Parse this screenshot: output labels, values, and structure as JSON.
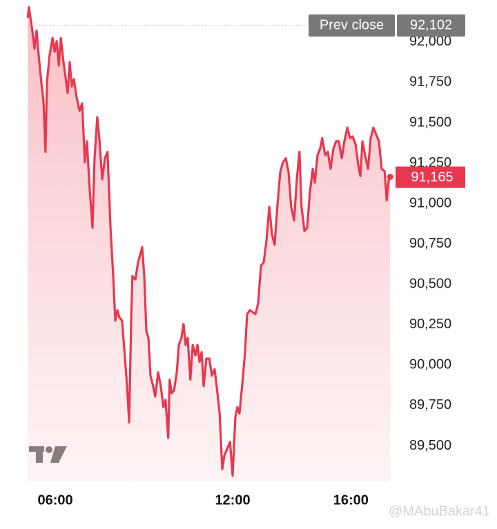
{
  "chart_data": {
    "type": "line",
    "color": "#e8384f",
    "x": [
      5.07,
      5.11,
      5.21,
      5.3,
      5.37,
      5.44,
      5.53,
      5.6,
      5.67,
      5.72,
      5.81,
      5.91,
      5.98,
      6.05,
      6.12,
      6.19,
      6.28,
      6.42,
      6.49,
      6.56,
      6.63,
      6.72,
      6.82,
      6.91,
      7.0,
      7.07,
      7.16,
      7.26,
      7.33,
      7.42,
      7.49,
      7.59,
      7.68,
      7.77,
      7.87,
      7.96,
      8.03,
      8.1,
      8.17,
      8.26,
      8.36,
      8.43,
      8.5,
      8.57,
      8.61,
      8.71,
      8.8,
      8.94,
      9.01,
      9.08,
      9.15,
      9.22,
      9.31,
      9.38,
      9.48,
      9.57,
      9.66,
      9.73,
      9.82,
      9.87,
      9.94,
      10.02,
      10.11,
      10.18,
      10.27,
      10.34,
      10.41,
      10.48,
      10.57,
      10.65,
      10.74,
      10.81,
      10.88,
      10.95,
      11.02,
      11.11,
      11.21,
      11.3,
      11.39,
      11.46,
      11.56,
      11.65,
      11.72,
      11.91,
      12.0,
      12.09,
      12.16,
      12.23,
      12.33,
      12.42,
      12.49,
      12.58,
      12.77,
      12.86,
      12.96,
      13.05,
      13.14,
      13.24,
      13.33,
      13.42,
      13.52,
      13.61,
      13.7,
      13.8,
      13.89,
      13.98,
      14.08,
      14.17,
      14.26,
      14.33,
      14.43,
      14.52,
      14.61,
      14.71,
      14.78,
      14.87,
      14.96,
      15.03,
      15.13,
      15.22,
      15.31,
      15.41,
      15.5,
      15.59,
      15.69,
      15.78,
      15.88,
      15.97,
      16.06,
      16.16,
      16.25,
      16.32,
      16.39,
      16.48,
      16.58,
      16.67,
      16.76,
      16.86,
      16.95,
      17.04,
      17.14,
      17.21,
      17.28,
      17.33
    ],
    "values": [
      92150,
      92215,
      92090,
      91960,
      92070,
      91920,
      91750,
      91640,
      91320,
      91750,
      91920,
      92025,
      91940,
      92005,
      91855,
      92025,
      91875,
      91685,
      91875,
      91725,
      91770,
      91660,
      91575,
      91620,
      91255,
      91385,
      91105,
      90850,
      91280,
      91535,
      91405,
      91150,
      91280,
      91320,
      90850,
      90550,
      90275,
      90340,
      90295,
      90275,
      90040,
      89870,
      89645,
      90295,
      90550,
      90530,
      90635,
      90730,
      90550,
      90210,
      90170,
      89935,
      89870,
      89805,
      89955,
      89870,
      89740,
      89785,
      89550,
      89910,
      89825,
      89845,
      89955,
      90125,
      90170,
      90255,
      90125,
      90170,
      89910,
      90125,
      90060,
      90125,
      90020,
      90080,
      89870,
      90040,
      90040,
      89935,
      89975,
      89870,
      89700,
      89355,
      89440,
      89525,
      89315,
      89675,
      89740,
      89700,
      89890,
      90080,
      90315,
      90340,
      90315,
      90380,
      90615,
      90635,
      90765,
      90980,
      90810,
      90745,
      91000,
      91195,
      91255,
      91280,
      91195,
      90980,
      90895,
      91150,
      91320,
      90980,
      90830,
      90850,
      91065,
      91215,
      91130,
      91300,
      91340,
      91405,
      91300,
      91320,
      91215,
      91340,
      91385,
      91385,
      91280,
      91385,
      91470,
      91405,
      91415,
      91365,
      91235,
      91170,
      91385,
      91300,
      91215,
      91405,
      91470,
      91425,
      91385,
      91215,
      91200,
      91020,
      91150,
      91165
    ],
    "xlim": [
      5,
      17.5
    ],
    "xticks": [
      {
        "value": 6,
        "label": "06:00"
      },
      {
        "value": 12,
        "label": "12:00"
      },
      {
        "value": 16,
        "label": "16:00"
      }
    ],
    "ylim": [
      89280,
      92260
    ],
    "yticks": [
      {
        "value": 89500,
        "label": "89,500"
      },
      {
        "value": 89750,
        "label": "89,750"
      },
      {
        "value": 90000,
        "label": "90,000"
      },
      {
        "value": 90250,
        "label": "90,250"
      },
      {
        "value": 90500,
        "label": "90,500"
      },
      {
        "value": 90750,
        "label": "90,750"
      },
      {
        "value": 91000,
        "label": "91,000"
      },
      {
        "value": 91250,
        "label": "91,250"
      },
      {
        "value": 91500,
        "label": "91,500"
      },
      {
        "value": 91750,
        "label": "91,750"
      },
      {
        "value": 92000,
        "label": "92,000"
      }
    ],
    "reference_line": {
      "name": "Prev close",
      "value": 92102,
      "label": "92,102"
    },
    "last_value": {
      "value": 91165,
      "label": "91,165"
    },
    "watermark": "@MAbuBakar41"
  }
}
